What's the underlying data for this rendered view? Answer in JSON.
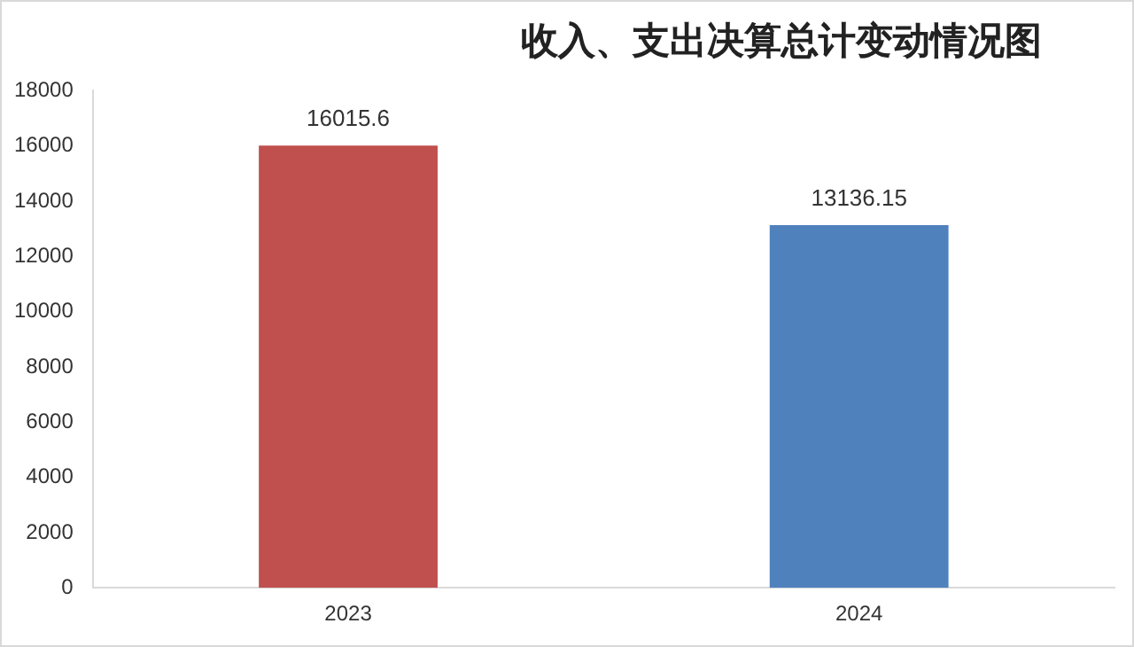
{
  "chart_data": {
    "type": "bar",
    "title": "收入、支出决算总计变动情况图",
    "categories": [
      "2023",
      "2024"
    ],
    "values": [
      16015.6,
      13136.15
    ],
    "colors": [
      "#c0504d",
      "#4f81bd"
    ],
    "ylim": [
      0,
      18000
    ],
    "yticks": [
      0,
      2000,
      4000,
      6000,
      8000,
      10000,
      12000,
      14000,
      16000,
      18000
    ],
    "grid": false,
    "legend": false,
    "data_labels": true
  }
}
